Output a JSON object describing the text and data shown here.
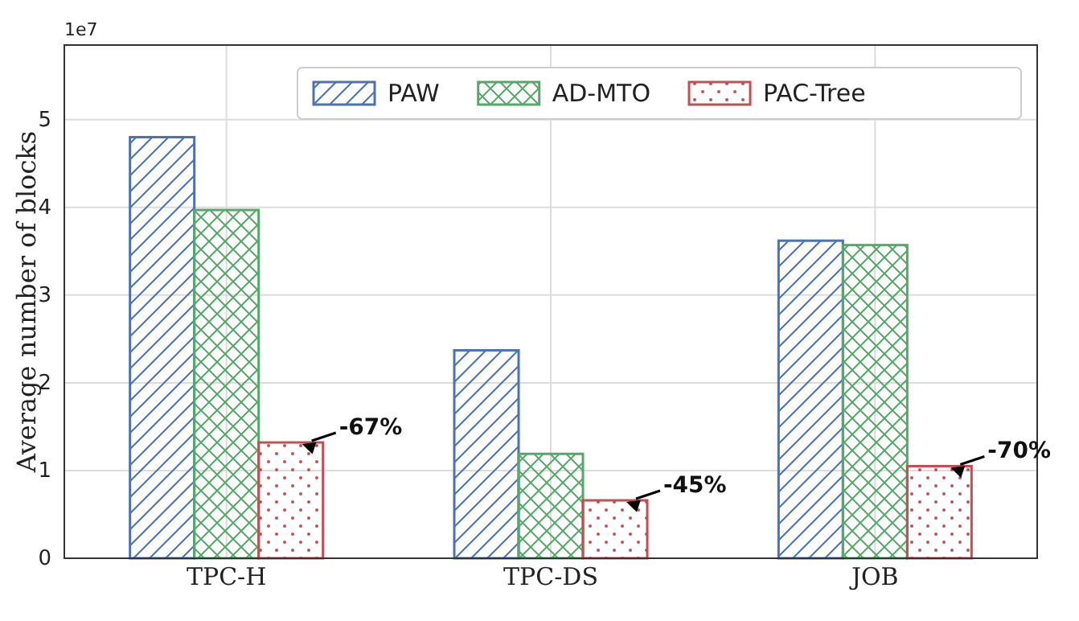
{
  "chart_data": {
    "type": "bar",
    "ylabel": "Average number of blocks",
    "categories": [
      "TPC-H",
      "TPC-DS",
      "JOB"
    ],
    "series": [
      {
        "name": "PAW",
        "color": "#4c72b0",
        "values": [
          4.8,
          2.37,
          3.62
        ]
      },
      {
        "name": "AD-MTO",
        "color": "#55a868",
        "values": [
          3.97,
          1.19,
          3.57
        ]
      },
      {
        "name": "PAC-Tree",
        "color": "#c44e52",
        "values": [
          1.32,
          0.66,
          1.05
        ]
      }
    ],
    "ylim": [
      0,
      5.85
    ],
    "yticks": [
      0,
      1,
      2,
      3,
      4,
      5
    ],
    "annotations": [
      "1e7",
      "-67%",
      "-45%",
      "-70%"
    ],
    "grid": true,
    "legend": "top right"
  }
}
